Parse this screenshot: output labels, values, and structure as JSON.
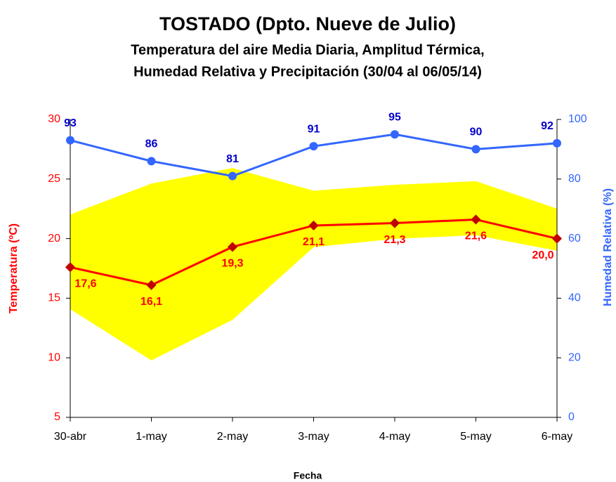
{
  "chart_data": {
    "type": "line",
    "title": "TOSTADO (Dpto. Nueve de Julio)",
    "subtitle": [
      "Temperatura del aire Media Diaria, Amplitud Térmica,",
      "Humedad Relativa y Precipitación (30/04 al 06/05/14)"
    ],
    "x_label": "Fecha",
    "y_label": "Temperatura (ºC)",
    "y2_label": "Humedad Relativa (%)",
    "categories": [
      "30-abr",
      "1-may",
      "2-may",
      "3-may",
      "4-may",
      "5-may",
      "6-may"
    ],
    "ylim": [
      5,
      30
    ],
    "yticks": [
      5,
      10,
      15,
      20,
      25,
      30
    ],
    "y2lim": [
      0,
      100
    ],
    "y2ticks": [
      0,
      20,
      40,
      60,
      80,
      100
    ],
    "band": {
      "color": "#ffff00",
      "max": [
        22.0,
        24.6,
        25.9,
        24.0,
        24.5,
        24.8,
        22.5
      ],
      "min": [
        14.1,
        9.8,
        13.2,
        19.3,
        20.0,
        20.3,
        19.0
      ]
    },
    "series": [
      {
        "color": "#ff0000",
        "values": [
          17.6,
          16.1,
          19.3,
          21.1,
          21.3,
          21.6,
          20.0
        ],
        "value_labels": [
          "17,6",
          "16,1",
          "19,3",
          "21,1",
          "21,3",
          "21,6",
          "20,0"
        ]
      },
      {
        "color": "#3366ff",
        "axis": "y2",
        "values": [
          93,
          86,
          81,
          91,
          95,
          90,
          92
        ]
      }
    ],
    "y_color": "#ff0000",
    "y2_color": "#3366ff",
    "label_color": "#0000cc"
  }
}
